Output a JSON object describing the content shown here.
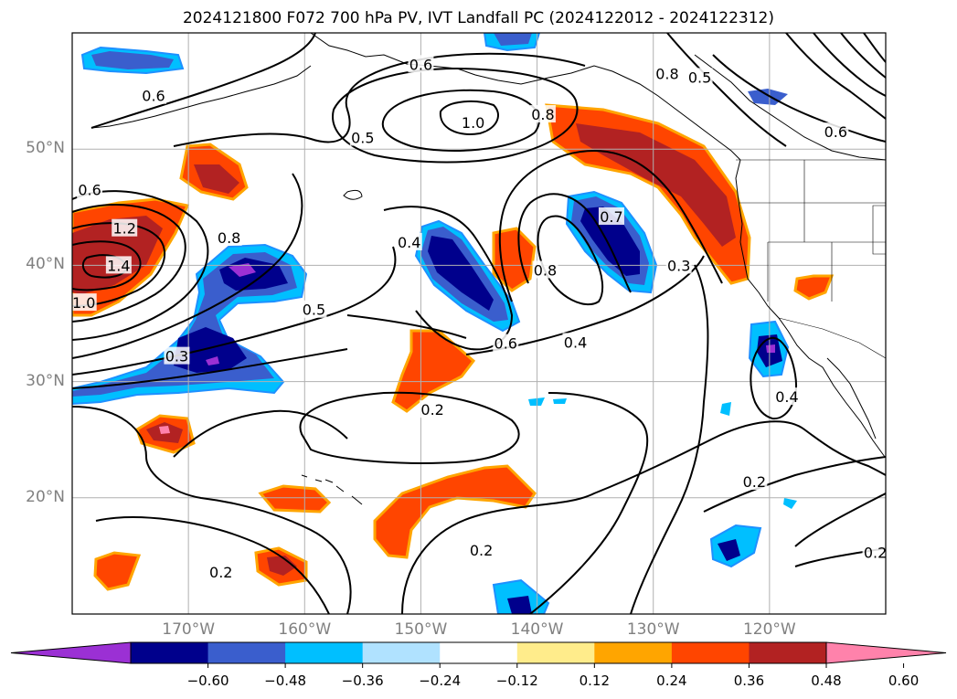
{
  "title": "2024121800 F072 700 hPa PV, IVT Landfall PC (2024122012 - 2024122312)",
  "map": {
    "lat_labels": [
      {
        "value": 50,
        "text": "50°N"
      },
      {
        "value": 40,
        "text": "40°N"
      },
      {
        "value": 30,
        "text": "30°N"
      },
      {
        "value": 20,
        "text": "20°N"
      }
    ],
    "lon_labels": [
      {
        "value": -170,
        "text": "170°W"
      },
      {
        "value": -160,
        "text": "160°W"
      },
      {
        "value": -150,
        "text": "150°W"
      },
      {
        "value": -140,
        "text": "140°W"
      },
      {
        "value": -130,
        "text": "130°W"
      },
      {
        "value": -120,
        "text": "120°W"
      }
    ],
    "grid": true,
    "contour_labels": [
      {
        "text": "0.6",
        "lon": -173,
        "lat": 54.6
      },
      {
        "text": "0.6",
        "lon": -150,
        "lat": 57.3
      },
      {
        "text": "0.5",
        "lon": -155,
        "lat": 51
      },
      {
        "text": "1.0",
        "lon": -145.5,
        "lat": 52.3
      },
      {
        "text": "0.8",
        "lon": -139.5,
        "lat": 53
      },
      {
        "text": "0.8",
        "lon": -128.8,
        "lat": 56.5
      },
      {
        "text": "0.5",
        "lon": -126,
        "lat": 56.2
      },
      {
        "text": "0.6",
        "lon": -114.3,
        "lat": 51.5
      },
      {
        "text": "0.6",
        "lon": -178.5,
        "lat": 46.5
      },
      {
        "text": "1.2",
        "lon": -175.5,
        "lat": 43.2
      },
      {
        "text": "1.4",
        "lon": -176,
        "lat": 40
      },
      {
        "text": "1.0",
        "lon": -179,
        "lat": 36.8
      },
      {
        "text": "0.8",
        "lon": -166.5,
        "lat": 42.4
      },
      {
        "text": "0.5",
        "lon": -159.2,
        "lat": 36.2
      },
      {
        "text": "0.3",
        "lon": -171,
        "lat": 32.2
      },
      {
        "text": "0.4",
        "lon": -151,
        "lat": 42
      },
      {
        "text": "0.8",
        "lon": -139.3,
        "lat": 39.6
      },
      {
        "text": "0.7",
        "lon": -133.6,
        "lat": 44.2
      },
      {
        "text": "0.3",
        "lon": -127.8,
        "lat": 40
      },
      {
        "text": "0.6",
        "lon": -142.7,
        "lat": 33.3
      },
      {
        "text": "0.4",
        "lon": -136.7,
        "lat": 33.4
      },
      {
        "text": "0.2",
        "lon": -149,
        "lat": 27.6
      },
      {
        "text": "0.4",
        "lon": -118.5,
        "lat": 28.7
      },
      {
        "text": "0.2",
        "lon": -121.3,
        "lat": 21.4
      },
      {
        "text": "0.2",
        "lon": -144.8,
        "lat": 15.5
      },
      {
        "text": "0.2",
        "lon": -167.2,
        "lat": 13.6
      },
      {
        "text": "0.2",
        "lon": -110.9,
        "lat": 15.3
      }
    ]
  },
  "colorbar": {
    "ticks": [
      "−0.60",
      "−0.48",
      "−0.36",
      "−0.24",
      "−0.12",
      "0.12",
      "0.24",
      "0.36",
      "0.48",
      "0.60"
    ],
    "colors": [
      "#9b30d4",
      "#00008c",
      "#3a5ecd",
      "#00bfff",
      "#b0e2ff",
      "#ffffff",
      "#ffec8b",
      "#ffa500",
      "#ff4500",
      "#b22222",
      "#ff82ab"
    ]
  }
}
